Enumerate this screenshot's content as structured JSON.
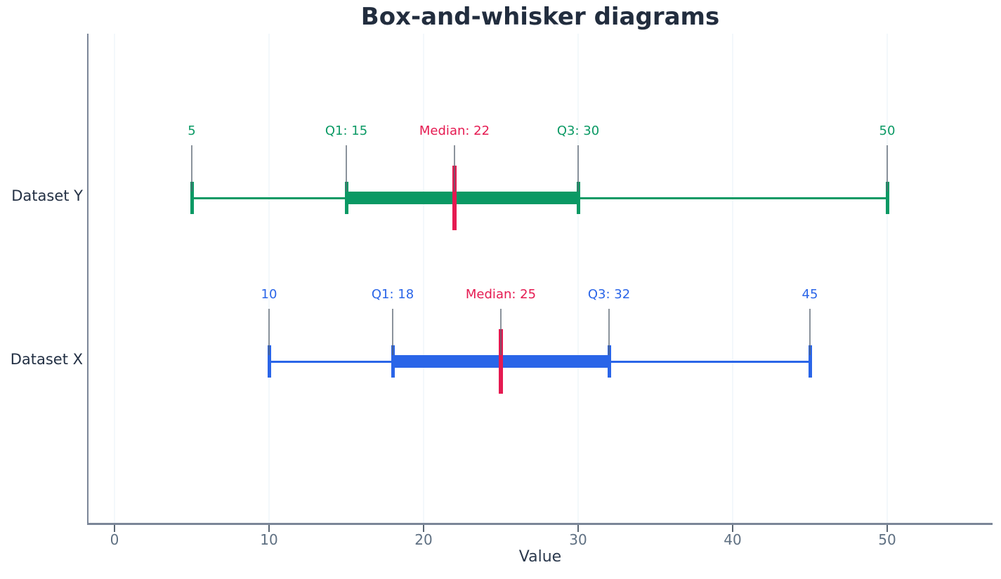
{
  "theme": {
    "background": "#ffffff",
    "title_color": "#222d3e",
    "axis_label_color": "#2b394d",
    "category_label_color": "#233044",
    "tick_label_color": "#5f7082",
    "spine_color": "#7b8698",
    "tick_color": "#5a6673",
    "grid_color": "#f3f8fb",
    "annotation_line_color": "rgba(90,101,114,0.7)"
  },
  "chart_data": {
    "type": "boxplot",
    "orientation": "horizontal",
    "title": "Box-and-whisker diagrams",
    "xlabel": "Value",
    "ylabel": "",
    "x_ticks": [
      0,
      10,
      20,
      30,
      40,
      50
    ],
    "xlim": [
      -1.7,
      56.8
    ],
    "grid": true,
    "median_color": "#e51a51",
    "series": [
      {
        "name": "Dataset Y",
        "color": "#0a9964",
        "min": 5,
        "q1": 15,
        "median": 22,
        "q3": 30,
        "max": 50,
        "labels": {
          "min": "5",
          "q1": "Q1: 15",
          "median": "Median: 22",
          "q3": "Q3: 30",
          "max": "50"
        }
      },
      {
        "name": "Dataset X",
        "color": "#2a65e8",
        "min": 10,
        "q1": 18,
        "median": 25,
        "q3": 32,
        "max": 45,
        "labels": {
          "min": "10",
          "q1": "Q1: 18",
          "median": "Median: 25",
          "q3": "Q3: 32",
          "max": "45"
        }
      }
    ]
  }
}
